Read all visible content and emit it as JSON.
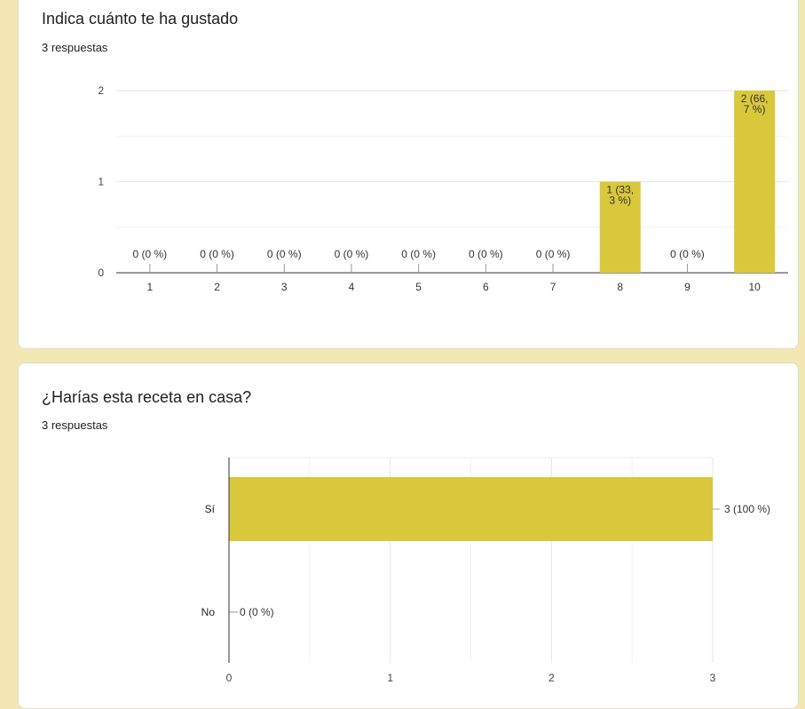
{
  "questions": [
    {
      "title": "Indica cuánto te ha gustado",
      "responses": "3 respuestas",
      "chart_data": {
        "type": "bar",
        "orientation": "vertical",
        "categories": [
          "1",
          "2",
          "3",
          "4",
          "5",
          "6",
          "7",
          "8",
          "9",
          "10"
        ],
        "values": [
          0,
          0,
          0,
          0,
          0,
          0,
          0,
          1,
          0,
          2
        ],
        "data_labels": [
          [
            "0 (0 %)"
          ],
          [
            "0 (0 %)"
          ],
          [
            "0 (0 %)"
          ],
          [
            "0 (0 %)"
          ],
          [
            "0 (0 %)"
          ],
          [
            "0 (0 %)"
          ],
          [
            "0 (0 %)"
          ],
          [
            "1 (33,",
            "3 %)"
          ],
          [
            "0 (0 %)"
          ],
          [
            "2 (66,",
            "7 %)"
          ]
        ],
        "yticks": [
          "0",
          "1",
          "2"
        ],
        "ylim": [
          0,
          2
        ],
        "grid": true,
        "bar_color": "#d9c83b"
      }
    },
    {
      "title": "¿Harías esta receta en casa?",
      "responses": "3 respuestas",
      "chart_data": {
        "type": "bar",
        "orientation": "horizontal",
        "categories": [
          "Sí",
          "No"
        ],
        "values": [
          3,
          0
        ],
        "data_labels": [
          "3 (100 %)",
          "0 (0 %)"
        ],
        "xticks": [
          "0",
          "1",
          "2",
          "3"
        ],
        "xlim": [
          0,
          3
        ],
        "grid": true,
        "bar_color": "#d9c83b"
      }
    }
  ]
}
